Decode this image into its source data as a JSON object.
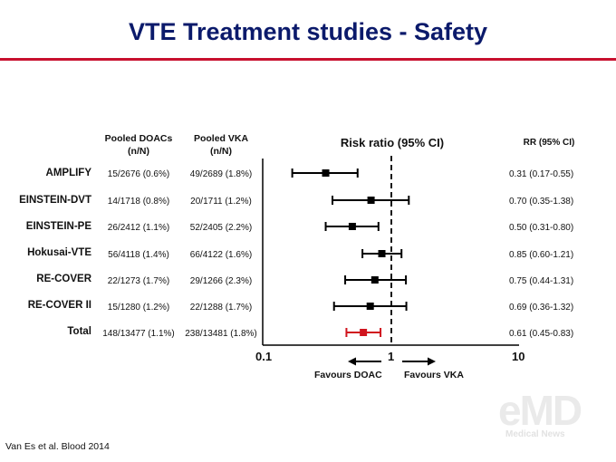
{
  "title": "VTE Treatment studies - Safety",
  "headers": {
    "doac_line1": "Pooled DOACs",
    "doac_line2": "(n/N)",
    "vka_line1": "Pooled VKA",
    "vka_line2": "(n/N)",
    "plot_title": "Risk ratio (95% CI)",
    "rr": "RR (95% CI)"
  },
  "rows": [
    {
      "study": "AMPLIFY",
      "doac": "15/2676 (0.6%)",
      "vka": "49/2689 (1.8%)",
      "rr_text": "0.31 (0.17-0.55)"
    },
    {
      "study": "EINSTEIN-DVT",
      "doac": "14/1718 (0.8%)",
      "vka": "20/1711 (1.2%)",
      "rr_text": "0.70 (0.35-1.38)"
    },
    {
      "study": "EINSTEIN-PE",
      "doac": "26/2412 (1.1%)",
      "vka": "52/2405 (2.2%)",
      "rr_text": "0.50 (0.31-0.80)"
    },
    {
      "study": "Hokusai-VTE",
      "doac": "56/4118 (1.4%)",
      "vka": "66/4122 (1.6%)",
      "rr_text": "0.85 (0.60-1.21)"
    },
    {
      "study": "RE-COVER",
      "doac": "22/1273 (1.7%)",
      "vka": "29/1266 (2.3%)",
      "rr_text": "0.75 (0.44-1.31)"
    },
    {
      "study": "RE-COVER II",
      "doac": "15/1280 (1.2%)",
      "vka": "22/1288 (1.7%)",
      "rr_text": "0.69 (0.36-1.32)"
    },
    {
      "study": "Total",
      "doac": "148/13477 (1.1%)",
      "vka": "238/13481 (1.8%)",
      "rr_text": "0.61 (0.45-0.83)"
    }
  ],
  "axis": {
    "ticks": [
      "0.1",
      "1",
      "10"
    ],
    "favours_left": "Favours DOAC",
    "favours_right": "Favours VKA"
  },
  "source": "Van Es et al. Blood 2014",
  "logo": {
    "main": "eMD",
    "sub": "Medical News"
  },
  "colors": {
    "title": "#0b1a6b",
    "rule": "#c8102e",
    "total": "#d0141e",
    "study": "#000000"
  },
  "chart_data": {
    "type": "scatter",
    "subtype": "forest-plot",
    "title": "Risk ratio (95% CI)",
    "x_scale": "log",
    "xlim": [
      0.1,
      10
    ],
    "reference_line": 1,
    "categories": [
      "AMPLIFY",
      "EINSTEIN-DVT",
      "EINSTEIN-PE",
      "Hokusai-VTE",
      "RE-COVER",
      "RE-COVER II",
      "Total"
    ],
    "estimates": [
      0.31,
      0.7,
      0.5,
      0.85,
      0.75,
      0.69,
      0.61
    ],
    "ci_low": [
      0.17,
      0.35,
      0.31,
      0.6,
      0.44,
      0.36,
      0.45
    ],
    "ci_high": [
      0.55,
      1.38,
      0.8,
      1.21,
      1.31,
      1.32,
      0.83
    ]
  }
}
